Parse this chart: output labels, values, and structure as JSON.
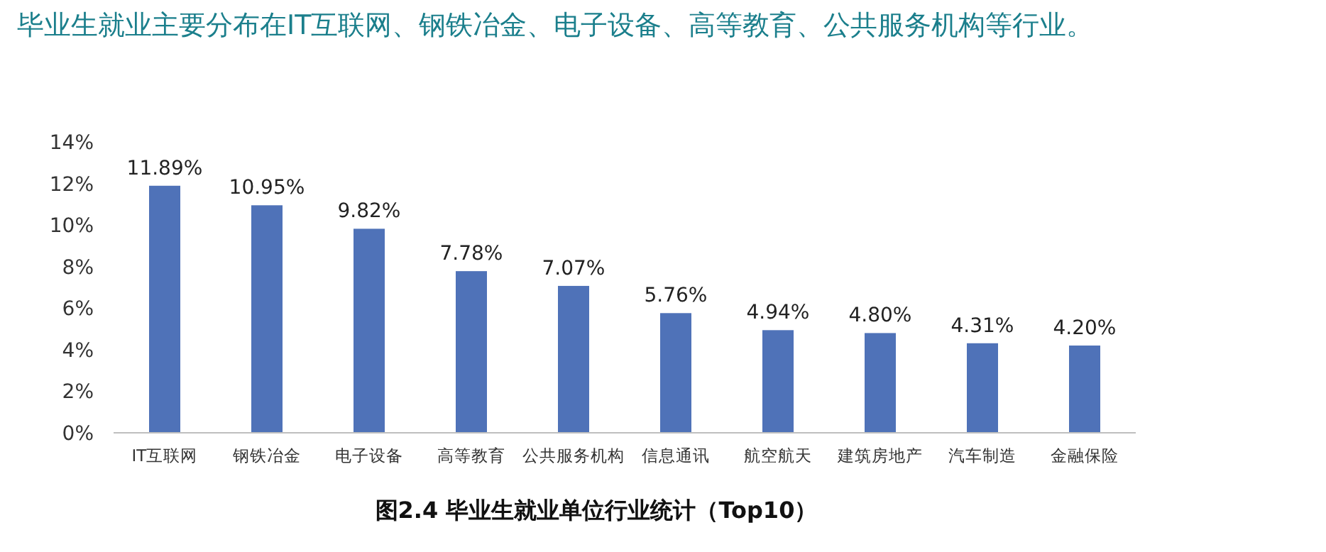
{
  "chart_data": {
    "type": "bar",
    "title": "毕业生就业主要分布在IT互联网、钢铁冶金、电子设备、高等教育、公共服务机构等行业。",
    "categories": [
      "IT互联网",
      "钢铁冶金",
      "电子设备",
      "高等教育",
      "公共服务机构",
      "信息通讯",
      "航空航天",
      "建筑房地产",
      "汽车制造",
      "金融保险"
    ],
    "values": [
      11.89,
      10.95,
      9.82,
      7.78,
      7.07,
      5.76,
      4.94,
      4.8,
      4.31,
      4.2
    ],
    "value_labels": [
      "11.89%",
      "10.95%",
      "9.82%",
      "7.78%",
      "7.07%",
      "5.76%",
      "4.94%",
      "4.80%",
      "4.31%",
      "4.20%"
    ],
    "color": "#4f72b8",
    "ylim": [
      0,
      14
    ],
    "yticks": [
      {
        "value": 0,
        "label": "0%"
      },
      {
        "value": 2,
        "label": "2%"
      },
      {
        "value": 4,
        "label": "4%"
      },
      {
        "value": 6,
        "label": "6%"
      },
      {
        "value": 8,
        "label": "8%"
      },
      {
        "value": 10,
        "label": "10%"
      },
      {
        "value": 12,
        "label": "12%"
      },
      {
        "value": 14,
        "label": "14%"
      }
    ],
    "annotations": [
      "图2.4  毕业生就业单位行业统计（Top10）"
    ]
  }
}
